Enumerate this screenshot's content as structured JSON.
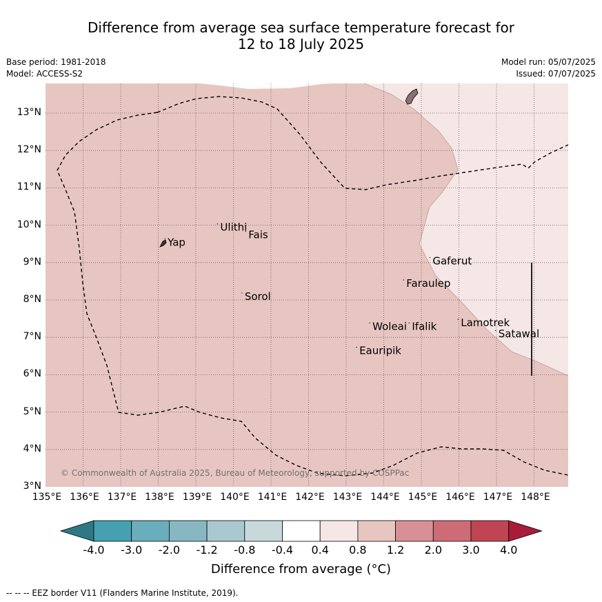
{
  "title_line1": "Difference from average sea surface temperature forecast for",
  "title_line2": "12 to 18 July 2025",
  "base_period": "Base period: 1981-2018",
  "model": "Model: ACCESS-S2",
  "model_run": "Model run: 05/07/2025",
  "issued": "Issued: 07/07/2025",
  "copyright": "© Commonwealth of Australia 2025, Bureau of Meteorology, supported by COSPPac",
  "lat_labels": [
    "13°N",
    "12°N",
    "11°N",
    "10°N",
    "9°N",
    "8°N",
    "7°N",
    "6°N",
    "5°N",
    "4°N",
    "3°N"
  ],
  "lon_labels": [
    "135°E",
    "136°E",
    "137°E",
    "138°E",
    "139°E",
    "140°E",
    "141°E",
    "142°E",
    "143°E",
    "144°E",
    "145°E",
    "146°E",
    "147°E",
    "148°E"
  ],
  "places": [
    {
      "name": "Yap",
      "lon": 138.25,
      "lat": 9.45
    },
    {
      "name": "Ulithi",
      "lon": 139.65,
      "lat": 9.85
    },
    {
      "name": "Fais",
      "lon": 140.4,
      "lat": 9.65
    },
    {
      "name": "Gaferut",
      "lon": 145.3,
      "lat": 8.95
    },
    {
      "name": "Faraulep",
      "lon": 144.6,
      "lat": 8.35
    },
    {
      "name": "Sorol",
      "lon": 140.3,
      "lat": 8.0
    },
    {
      "name": "Lamotrek",
      "lon": 146.05,
      "lat": 7.3
    },
    {
      "name": "Woleai",
      "lon": 143.7,
      "lat": 7.2
    },
    {
      "name": "Ifalik",
      "lon": 144.75,
      "lat": 7.2
    },
    {
      "name": "Satawal",
      "lon": 147.05,
      "lat": 7.0
    },
    {
      "name": "Eauripik",
      "lon": 143.35,
      "lat": 6.55
    }
  ],
  "colorbar": {
    "ticks": [
      "-4.0",
      "-3.0",
      "-2.0",
      "-1.2",
      "-0.8",
      "-0.4",
      "0.4",
      "0.8",
      "1.2",
      "2.0",
      "3.0",
      "4.0"
    ],
    "colors": [
      "#2e7886",
      "#45a0b2",
      "#6aadbc",
      "#87b7c3",
      "#a9c8cf",
      "#c8d9dc",
      "#ffffff",
      "#f4e7e5",
      "#e7c6c2",
      "#d79096",
      "#cd6c77",
      "#bf4555",
      "#a81c3a"
    ],
    "label": "Difference from average (°C)"
  },
  "map_colors": {
    "anomaly_0_8_to_1_2": "#e7c6c2",
    "anomaly_0_4_to_0_8": "#f4e7e5"
  },
  "footnote": "-- -- -- EEZ border V11 (Flanders Marine Institute, 2019)."
}
